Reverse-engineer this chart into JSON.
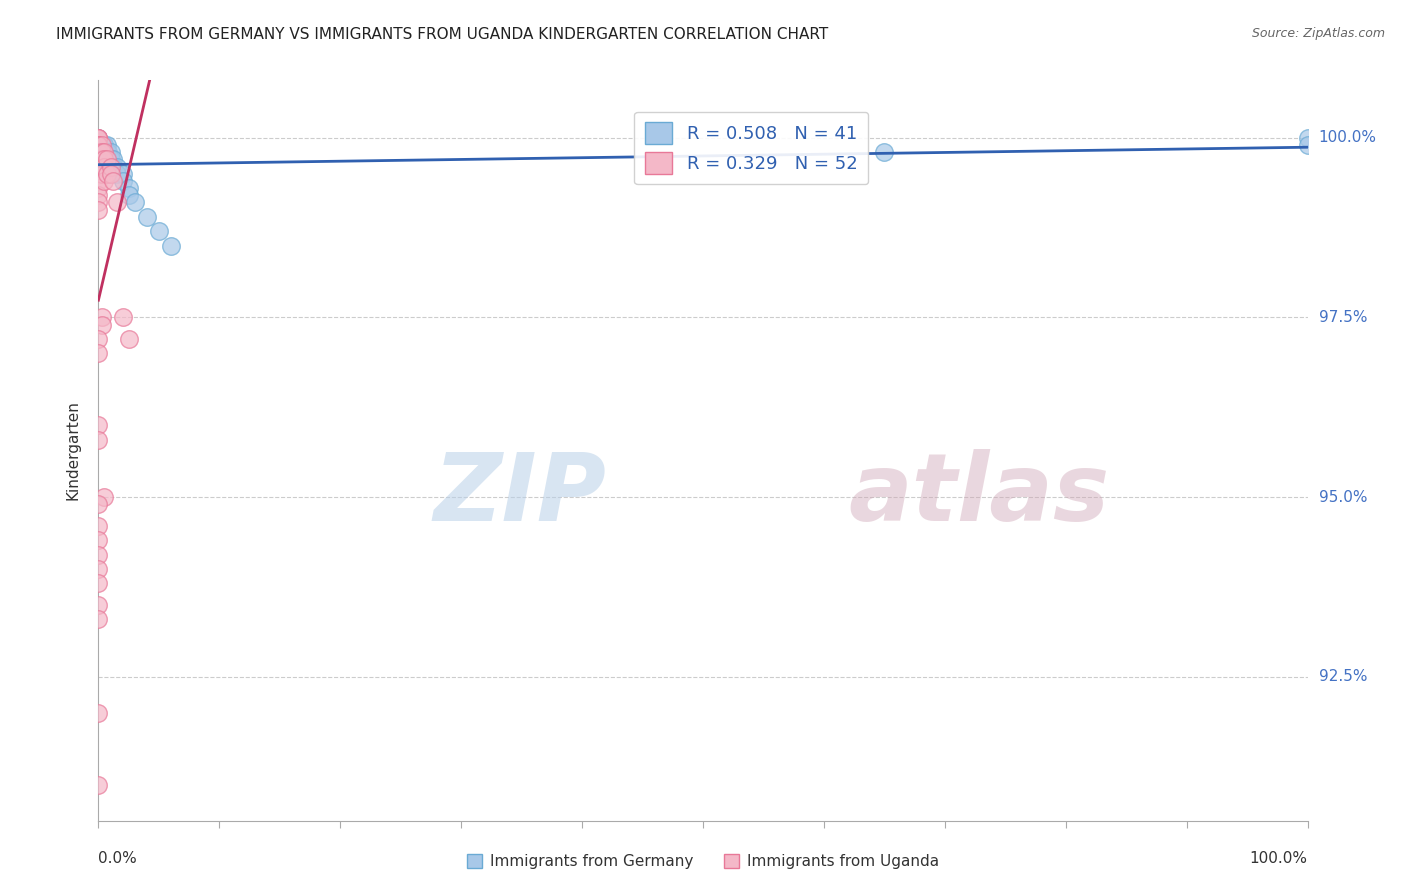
{
  "title": "IMMIGRANTS FROM GERMANY VS IMMIGRANTS FROM UGANDA KINDERGARTEN CORRELATION CHART",
  "source": "Source: ZipAtlas.com",
  "ylabel": "Kindergarten",
  "ytick_labels": [
    "100.0%",
    "97.5%",
    "95.0%",
    "92.5%"
  ],
  "ytick_values": [
    1.0,
    0.975,
    0.95,
    0.925
  ],
  "xlim": [
    0.0,
    1.0
  ],
  "ylim": [
    0.905,
    1.008
  ],
  "legend_r_germany": "R = 0.508",
  "legend_n_germany": "N = 41",
  "legend_r_uganda": "R = 0.329",
  "legend_n_uganda": "N = 52",
  "germany_color": "#a8c8e8",
  "uganda_color": "#f4b8c8",
  "germany_edge_color": "#6aaad4",
  "uganda_edge_color": "#e87898",
  "trendline_germany_color": "#3060b0",
  "trendline_uganda_color": "#c03060",
  "ytick_label_color": "#4472c4",
  "germany_x": [
    0.0,
    0.0,
    0.0,
    0.0,
    0.0,
    0.0,
    0.0,
    0.003,
    0.003,
    0.003,
    0.003,
    0.003,
    0.005,
    0.005,
    0.005,
    0.005,
    0.005,
    0.005,
    0.007,
    0.007,
    0.007,
    0.008,
    0.008,
    0.01,
    0.01,
    0.01,
    0.012,
    0.012,
    0.015,
    0.015,
    0.02,
    0.02,
    0.025,
    0.025,
    0.03,
    0.04,
    0.05,
    0.06,
    0.65,
    1.0,
    1.0
  ],
  "germany_y": [
    1.0,
    0.999,
    0.999,
    0.998,
    0.998,
    0.997,
    0.997,
    0.999,
    0.999,
    0.998,
    0.998,
    0.997,
    0.999,
    0.999,
    0.998,
    0.998,
    0.997,
    0.997,
    0.999,
    0.998,
    0.997,
    0.998,
    0.997,
    0.998,
    0.997,
    0.996,
    0.997,
    0.996,
    0.996,
    0.995,
    0.995,
    0.994,
    0.993,
    0.992,
    0.991,
    0.989,
    0.987,
    0.985,
    0.998,
    1.0,
    0.999
  ],
  "uganda_x": [
    0.0,
    0.0,
    0.0,
    0.0,
    0.0,
    0.0,
    0.0,
    0.0,
    0.0,
    0.0,
    0.0,
    0.0,
    0.0,
    0.0,
    0.0,
    0.0,
    0.0,
    0.0,
    0.003,
    0.003,
    0.003,
    0.003,
    0.003,
    0.005,
    0.005,
    0.005,
    0.005,
    0.007,
    0.007,
    0.01,
    0.01,
    0.012,
    0.015,
    0.02,
    0.025,
    0.003,
    0.003,
    0.0,
    0.0,
    0.0,
    0.0,
    0.005,
    0.0,
    0.0,
    0.0,
    0.0,
    0.0,
    0.0,
    0.0,
    0.0,
    0.0,
    0.0
  ],
  "uganda_y": [
    1.0,
    1.0,
    1.0,
    0.999,
    0.999,
    0.999,
    0.998,
    0.998,
    0.997,
    0.997,
    0.996,
    0.996,
    0.995,
    0.994,
    0.993,
    0.992,
    0.991,
    0.99,
    0.999,
    0.998,
    0.997,
    0.996,
    0.995,
    0.998,
    0.997,
    0.996,
    0.994,
    0.997,
    0.995,
    0.996,
    0.995,
    0.994,
    0.991,
    0.975,
    0.972,
    0.975,
    0.974,
    0.972,
    0.97,
    0.96,
    0.958,
    0.95,
    0.949,
    0.946,
    0.944,
    0.942,
    0.94,
    0.938,
    0.935,
    0.933,
    0.92,
    0.91
  ]
}
